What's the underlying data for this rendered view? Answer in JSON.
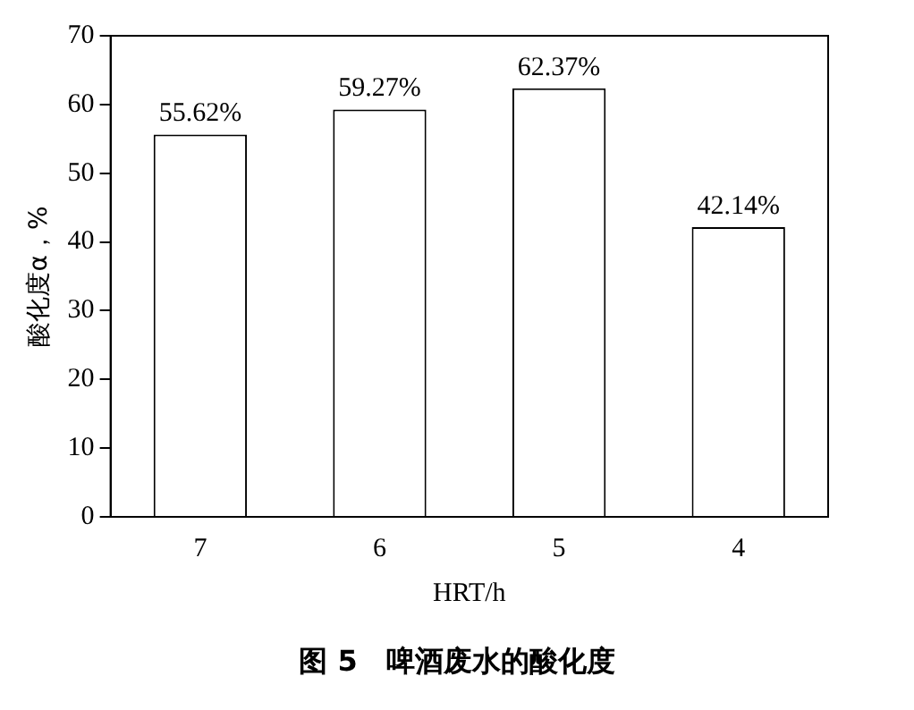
{
  "chart_data": {
    "type": "bar",
    "categories": [
      "7",
      "6",
      "5",
      "4"
    ],
    "values": [
      55.62,
      59.27,
      62.37,
      42.14
    ],
    "value_labels": [
      "55.62%",
      "59.27%",
      "62.37%",
      "42.14%"
    ],
    "color": "#ffffff",
    "ylim": [
      0,
      70
    ],
    "yticks": [
      0,
      10,
      20,
      30,
      40,
      50,
      60,
      70
    ],
    "xlabel": "HRT/h",
    "ylabel": "酸化度α，%",
    "annotations": [
      "图 5　啤酒废水的酸化度"
    ],
    "grid": false,
    "legend": false
  }
}
